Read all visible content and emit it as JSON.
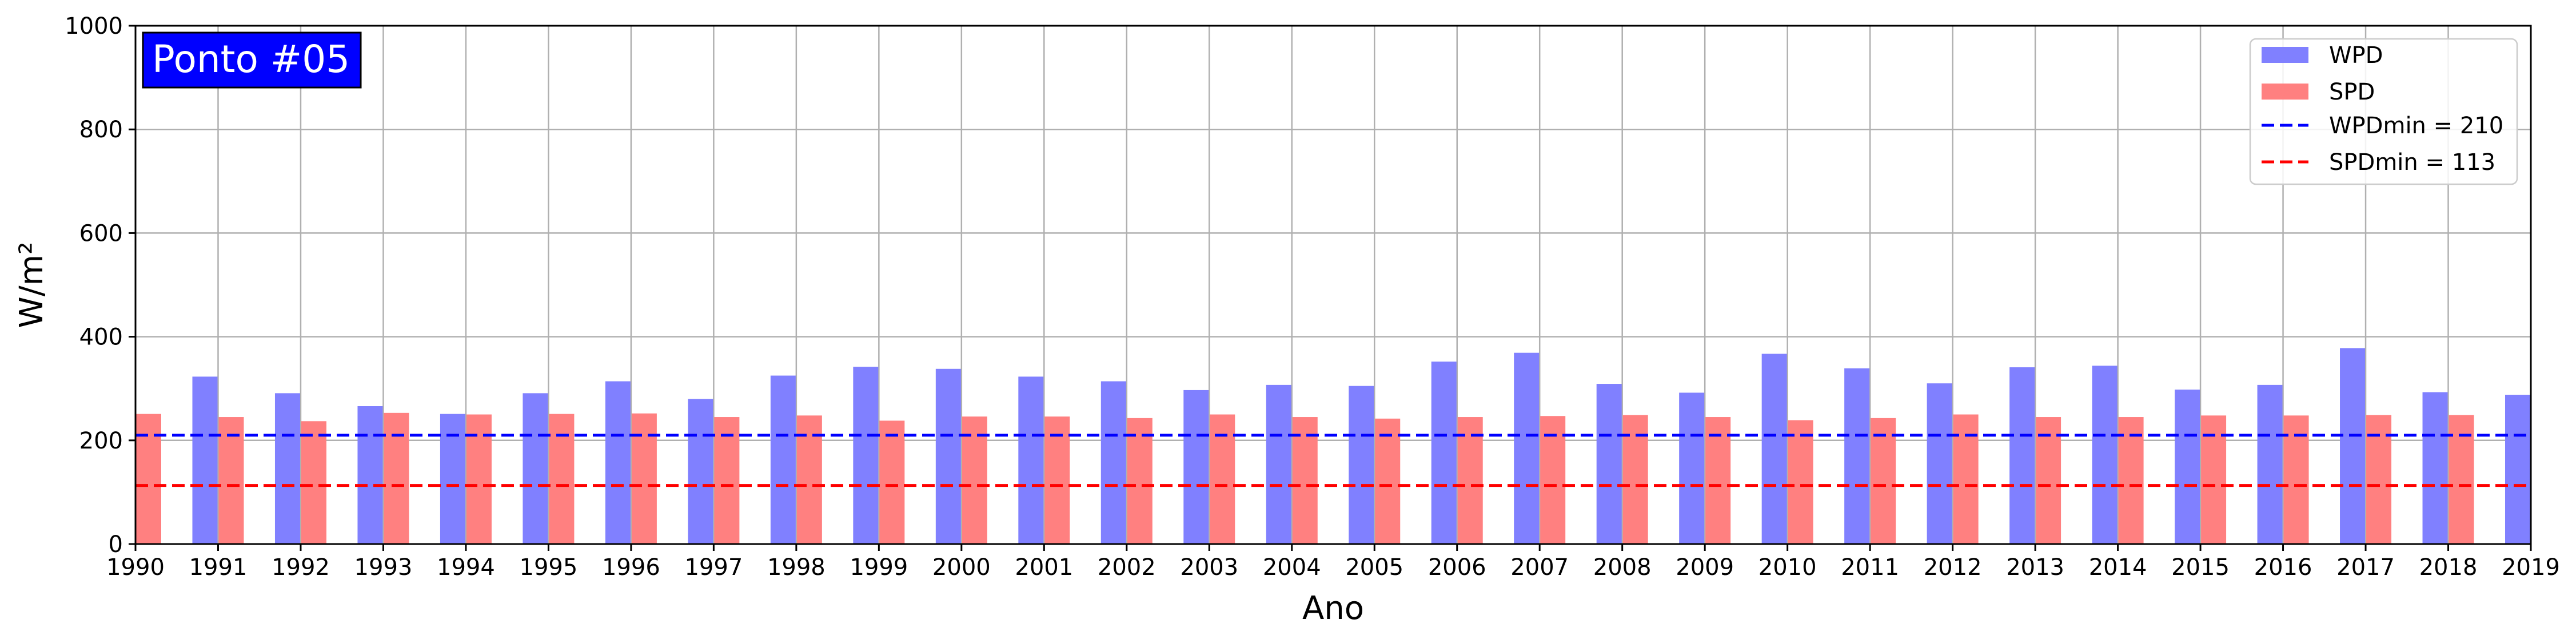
{
  "chart_data": {
    "type": "bar",
    "title": "Ponto #05",
    "xlabel": "Ano",
    "ylabel": "W/m²",
    "ylim": [
      0,
      1000
    ],
    "xlim": [
      1990,
      2019
    ],
    "y_ticks": [
      0,
      200,
      400,
      600,
      800,
      1000
    ],
    "categories": [
      1990,
      1991,
      1992,
      1993,
      1994,
      1995,
      1996,
      1997,
      1998,
      1999,
      2000,
      2001,
      2002,
      2003,
      2004,
      2005,
      2006,
      2007,
      2008,
      2009,
      2010,
      2011,
      2012,
      2013,
      2014,
      2015,
      2016,
      2017,
      2018,
      2019
    ],
    "series": [
      {
        "name": "WPD",
        "color": "#8080ff",
        "values": [
          null,
          323,
          291,
          266,
          251,
          291,
          314,
          280,
          325,
          342,
          338,
          323,
          314,
          297,
          307,
          305,
          352,
          369,
          309,
          292,
          367,
          339,
          310,
          341,
          344,
          298,
          307,
          378,
          293,
          288
        ]
      },
      {
        "name": "SPD",
        "color": "#ff8080",
        "values": [
          251,
          245,
          237,
          253,
          250,
          251,
          252,
          245,
          248,
          238,
          246,
          246,
          243,
          250,
          245,
          242,
          245,
          247,
          249,
          245,
          239,
          243,
          250,
          245,
          245,
          248,
          248,
          249,
          249,
          null
        ]
      }
    ],
    "reference_lines": [
      {
        "name": "WPDmin = 210",
        "value": 210,
        "color": "#0000ff",
        "style": "dashed"
      },
      {
        "name": "SPDmin = 113",
        "value": 113,
        "color": "#ff0000",
        "style": "dashed"
      }
    ],
    "legend": {
      "position": "top-right",
      "entries": [
        "WPD",
        "SPD",
        "WPDmin = 210",
        "SPDmin = 113"
      ]
    },
    "badge": {
      "text": "Ponto #05",
      "background": "#0000ff",
      "color": "#ffffff",
      "position": "top-left"
    },
    "grid": true
  }
}
